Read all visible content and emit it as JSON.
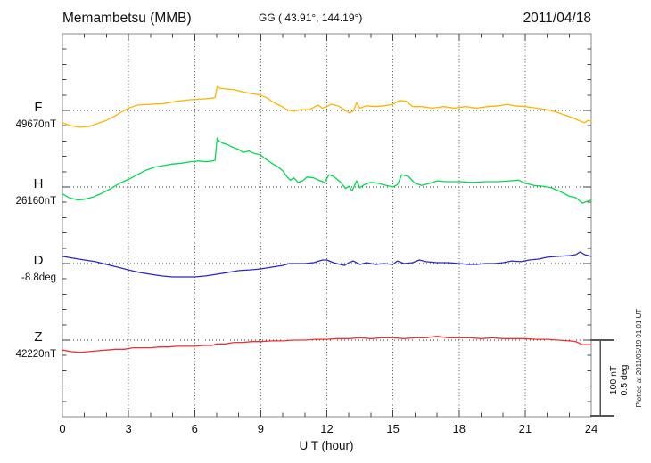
{
  "header": {
    "station": "Memambetsu (MMB)",
    "coords": "GG ( 43.91°, 144.19°)",
    "date": "2011/04/18"
  },
  "axis": {
    "x_label": "U T (hour)",
    "x_min": 0,
    "x_max": 24,
    "x_tick_labels": [
      "0",
      "3",
      "6",
      "9",
      "12",
      "15",
      "18",
      "21",
      "24"
    ],
    "x_tick_hours": [
      0,
      3,
      6,
      9,
      12,
      15,
      18,
      21,
      24
    ]
  },
  "scale_bar": {
    "label_nt": "100 nT",
    "label_deg": "0.5 deg"
  },
  "footer_note": "Plotted at 2011/05/19 01:01 UT",
  "colors": {
    "F": "#FFB400",
    "H": "#00DC50",
    "D": "#2828C8",
    "Z": "#F03030",
    "frame": "#888888",
    "ticks": "#444444",
    "grid_v": "#555555",
    "grid_h": "#333333",
    "text": "#111111"
  },
  "chart_data": {
    "type": "line",
    "title": "Memambetsu (MMB) magnetogram",
    "subtitle": "GG ( 43.91°, 144.19°)  2011/04/18",
    "xlabel": "U T (hour)",
    "x_range": [
      0,
      24
    ],
    "grid": "dotted baselines per component, vertical dotted lines every 3 h",
    "legend_position": "left margin, one label per trace",
    "scale": "100 nT per division (F,H,Z); 0.5 deg per division (D)",
    "note": "points are [hour, offset from base value]; absolute value = base + offset",
    "series": [
      {
        "name": "F",
        "label": "F",
        "base_label": "49670nT",
        "base": 49670,
        "unit": "nT",
        "points": [
          [
            0,
            -16
          ],
          [
            0.4,
            -20
          ],
          [
            0.8,
            -22
          ],
          [
            1.2,
            -21
          ],
          [
            1.6,
            -17
          ],
          [
            2,
            -13
          ],
          [
            2.4,
            -7
          ],
          [
            2.8,
            0
          ],
          [
            3,
            3
          ],
          [
            3.4,
            7
          ],
          [
            4,
            8
          ],
          [
            4.6,
            9
          ],
          [
            5.2,
            12
          ],
          [
            5.8,
            14
          ],
          [
            6.4,
            15
          ],
          [
            6.8,
            16
          ],
          [
            6.93,
            17
          ],
          [
            7.02,
            31
          ],
          [
            7.15,
            29
          ],
          [
            7.4,
            28
          ],
          [
            7.8,
            27
          ],
          [
            8.2,
            24
          ],
          [
            8.6,
            22
          ],
          [
            9,
            20
          ],
          [
            9.3,
            16
          ],
          [
            9.6,
            10
          ],
          [
            9.9,
            6
          ],
          [
            10.2,
            1
          ],
          [
            10.5,
            -1
          ],
          [
            10.8,
            1
          ],
          [
            11.2,
            1
          ],
          [
            11.6,
            7
          ],
          [
            11.8,
            3
          ],
          [
            12,
            5
          ],
          [
            12.2,
            8
          ],
          [
            12.5,
            6
          ],
          [
            12.8,
            1
          ],
          [
            13,
            -3
          ],
          [
            13.2,
            -1
          ],
          [
            13.35,
            10
          ],
          [
            13.5,
            3
          ],
          [
            13.8,
            6
          ],
          [
            14.2,
            5
          ],
          [
            14.6,
            6
          ],
          [
            15,
            8
          ],
          [
            15.3,
            13
          ],
          [
            15.6,
            12
          ],
          [
            15.9,
            5
          ],
          [
            16.3,
            5
          ],
          [
            16.8,
            3
          ],
          [
            17.3,
            5
          ],
          [
            17.8,
            3
          ],
          [
            18.3,
            5
          ],
          [
            18.8,
            3
          ],
          [
            19.3,
            5
          ],
          [
            19.8,
            6
          ],
          [
            20.2,
            8
          ],
          [
            20.5,
            6
          ],
          [
            21,
            5
          ],
          [
            21.5,
            3
          ],
          [
            22,
            1
          ],
          [
            22.4,
            -2
          ],
          [
            22.8,
            -6
          ],
          [
            23.2,
            -10
          ],
          [
            23.5,
            -14
          ],
          [
            23.7,
            -16
          ],
          [
            23.85,
            -13
          ],
          [
            24,
            -14
          ]
        ]
      },
      {
        "name": "H",
        "label": "H",
        "base_label": "26160nT",
        "base": 26160,
        "unit": "nT",
        "points": [
          [
            0,
            -9
          ],
          [
            0.3,
            -14
          ],
          [
            0.7,
            -17
          ],
          [
            1,
            -16
          ],
          [
            1.4,
            -13
          ],
          [
            1.8,
            -8
          ],
          [
            2.2,
            -2
          ],
          [
            2.6,
            5
          ],
          [
            3,
            10
          ],
          [
            3.4,
            16
          ],
          [
            3.8,
            22
          ],
          [
            4.2,
            26
          ],
          [
            4.6,
            28
          ],
          [
            5,
            30
          ],
          [
            5.4,
            31
          ],
          [
            5.8,
            33
          ],
          [
            6.2,
            34
          ],
          [
            6.5,
            33
          ],
          [
            6.8,
            34
          ],
          [
            6.93,
            35
          ],
          [
            7.02,
            64
          ],
          [
            7.1,
            60
          ],
          [
            7.3,
            57
          ],
          [
            7.5,
            55
          ],
          [
            7.8,
            51
          ],
          [
            8,
            49
          ],
          [
            8.2,
            45
          ],
          [
            8.45,
            47
          ],
          [
            8.7,
            44
          ],
          [
            9,
            42
          ],
          [
            9.2,
            37
          ],
          [
            9.5,
            31
          ],
          [
            9.8,
            26
          ],
          [
            10,
            21
          ],
          [
            10.2,
            13
          ],
          [
            10.35,
            9
          ],
          [
            10.5,
            12
          ],
          [
            10.7,
            6
          ],
          [
            10.9,
            8
          ],
          [
            11.1,
            13
          ],
          [
            11.4,
            12
          ],
          [
            11.7,
            8
          ],
          [
            11.9,
            6
          ],
          [
            12.1,
            16
          ],
          [
            12.3,
            14
          ],
          [
            12.6,
            7
          ],
          [
            12.85,
            -2
          ],
          [
            13,
            1
          ],
          [
            13.15,
            -5
          ],
          [
            13.35,
            8
          ],
          [
            13.5,
            -1
          ],
          [
            13.7,
            3
          ],
          [
            14,
            6
          ],
          [
            14.3,
            5
          ],
          [
            14.7,
            2
          ],
          [
            15,
            0
          ],
          [
            15.2,
            3
          ],
          [
            15.4,
            16
          ],
          [
            15.7,
            14
          ],
          [
            16,
            5
          ],
          [
            16.3,
            2
          ],
          [
            16.7,
            5
          ],
          [
            17,
            8
          ],
          [
            17.4,
            7
          ],
          [
            18,
            7
          ],
          [
            18.6,
            6
          ],
          [
            19.2,
            7
          ],
          [
            19.8,
            7
          ],
          [
            20.3,
            8
          ],
          [
            20.7,
            9
          ],
          [
            21,
            5
          ],
          [
            21.4,
            2
          ],
          [
            21.8,
            1
          ],
          [
            22.2,
            -1
          ],
          [
            22.6,
            -6
          ],
          [
            23,
            -12
          ],
          [
            23.3,
            -14
          ],
          [
            23.6,
            -21
          ],
          [
            23.8,
            -19
          ],
          [
            24,
            -17
          ]
        ]
      },
      {
        "name": "D",
        "label": "D",
        "base_label": "-8.8deg",
        "base": -8.8,
        "unit": "deg",
        "points": [
          [
            0,
            0.047
          ],
          [
            0.5,
            0.035
          ],
          [
            1,
            0.023
          ],
          [
            1.5,
            0.012
          ],
          [
            2,
            -0.006
          ],
          [
            2.5,
            -0.023
          ],
          [
            3,
            -0.041
          ],
          [
            3.5,
            -0.058
          ],
          [
            4,
            -0.07
          ],
          [
            4.5,
            -0.081
          ],
          [
            5,
            -0.087
          ],
          [
            5.5,
            -0.087
          ],
          [
            6,
            -0.087
          ],
          [
            6.5,
            -0.081
          ],
          [
            7,
            -0.07
          ],
          [
            7.5,
            -0.058
          ],
          [
            8,
            -0.046
          ],
          [
            8.5,
            -0.041
          ],
          [
            9,
            -0.035
          ],
          [
            9.5,
            -0.023
          ],
          [
            10,
            -0.012
          ],
          [
            10.3,
            0
          ],
          [
            10.7,
            0
          ],
          [
            11,
            0
          ],
          [
            11.4,
            0.006
          ],
          [
            11.8,
            0.023
          ],
          [
            12,
            0.023
          ],
          [
            12.3,
            0.006
          ],
          [
            12.6,
            -0.006
          ],
          [
            12.8,
            -0.012
          ],
          [
            13,
            0.006
          ],
          [
            13.2,
            0.017
          ],
          [
            13.5,
            -0.006
          ],
          [
            13.8,
            0.006
          ],
          [
            14.2,
            -0.006
          ],
          [
            14.6,
            0
          ],
          [
            15,
            -0.006
          ],
          [
            15.2,
            0.017
          ],
          [
            15.5,
            0
          ],
          [
            15.9,
            0.006
          ],
          [
            16.2,
            0.023
          ],
          [
            16.5,
            0.012
          ],
          [
            17,
            0.006
          ],
          [
            17.5,
            0.006
          ],
          [
            18,
            0
          ],
          [
            18.4,
            -0.006
          ],
          [
            18.8,
            -0.006
          ],
          [
            19.2,
            0
          ],
          [
            19.6,
            0
          ],
          [
            20,
            0.006
          ],
          [
            20.4,
            0.017
          ],
          [
            20.8,
            0.012
          ],
          [
            21.2,
            0.023
          ],
          [
            21.6,
            0.029
          ],
          [
            22,
            0.041
          ],
          [
            22.5,
            0.047
          ],
          [
            23,
            0.052
          ],
          [
            23.3,
            0.058
          ],
          [
            23.5,
            0.076
          ],
          [
            23.7,
            0.058
          ],
          [
            24,
            0.047
          ]
        ]
      },
      {
        "name": "Z",
        "label": "Z",
        "base_label": "42220nT",
        "base": 42220,
        "unit": "nT",
        "points": [
          [
            0,
            -13
          ],
          [
            0.4,
            -15
          ],
          [
            0.8,
            -16
          ],
          [
            1.2,
            -15
          ],
          [
            1.6,
            -14
          ],
          [
            2,
            -13
          ],
          [
            2.4,
            -12
          ],
          [
            2.8,
            -12
          ],
          [
            3.2,
            -10
          ],
          [
            3.6,
            -10
          ],
          [
            4,
            -10
          ],
          [
            4.4,
            -9
          ],
          [
            4.8,
            -9
          ],
          [
            5.2,
            -8
          ],
          [
            5.6,
            -8
          ],
          [
            6,
            -8
          ],
          [
            6.4,
            -7
          ],
          [
            6.8,
            -7
          ],
          [
            7,
            -5
          ],
          [
            7.4,
            -5
          ],
          [
            7.8,
            -3
          ],
          [
            8.2,
            -3
          ],
          [
            8.6,
            -2
          ],
          [
            9,
            -2
          ],
          [
            9.5,
            -1
          ],
          [
            10,
            -1
          ],
          [
            10.5,
            0
          ],
          [
            11,
            0
          ],
          [
            11.5,
            1
          ],
          [
            12,
            1
          ],
          [
            12.5,
            2
          ],
          [
            13,
            2
          ],
          [
            13.5,
            3
          ],
          [
            14,
            2
          ],
          [
            14.5,
            3
          ],
          [
            15,
            3
          ],
          [
            15.5,
            2
          ],
          [
            16,
            3
          ],
          [
            16.5,
            3
          ],
          [
            17,
            5
          ],
          [
            17.5,
            3
          ],
          [
            18,
            3
          ],
          [
            18.5,
            3
          ],
          [
            19,
            2
          ],
          [
            19.5,
            3
          ],
          [
            20,
            2
          ],
          [
            20.5,
            2
          ],
          [
            21,
            2
          ],
          [
            21.5,
            1
          ],
          [
            22,
            1
          ],
          [
            22.5,
            0
          ],
          [
            23,
            -1
          ],
          [
            23.3,
            -2
          ],
          [
            23.6,
            -6
          ],
          [
            24,
            -6
          ]
        ]
      }
    ]
  }
}
